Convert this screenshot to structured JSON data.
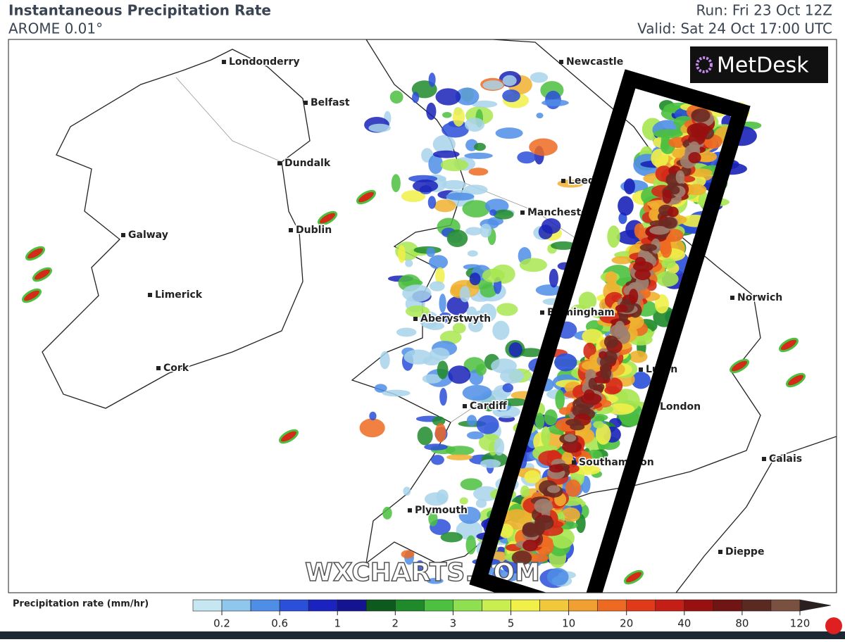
{
  "header": {
    "title": "Instantaneous Precipitation Rate",
    "model": "AROME 0.01°",
    "run": "Run: Fri 23 Oct 12Z",
    "valid": "Valid: Sat 24 Oct 17:00 UTC"
  },
  "logo": "MetDesk",
  "watermark": "WXCHARTS.COM",
  "places": [
    "Londonderry",
    "Belfast",
    "Newcastle",
    "Dundalk",
    "Leeds",
    "Manchester",
    "Dublin",
    "Galway",
    "Limerick",
    "Aberystwyth",
    "Birmingham",
    "Norwich",
    "Cork",
    "Luton",
    "Cardiff",
    "London",
    "Calais",
    "Southampton",
    "Plymouth",
    "Dieppe"
  ],
  "legend": {
    "title": "Precipitation rate (mm/hr)",
    "ticks": [
      0.2,
      0.6,
      1,
      2,
      3,
      5,
      10,
      20,
      40,
      80,
      120
    ]
  }
}
